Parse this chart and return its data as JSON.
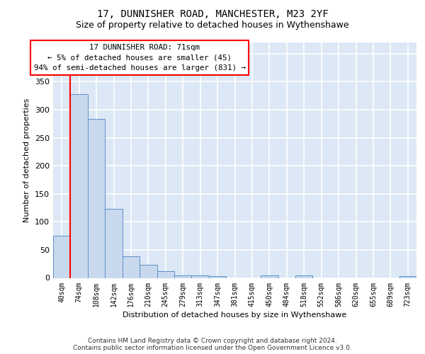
{
  "title": "17, DUNNISHER ROAD, MANCHESTER, M23 2YF",
  "subtitle": "Size of property relative to detached houses in Wythenshawe",
  "xlabel": "Distribution of detached houses by size in Wythenshawe",
  "ylabel": "Number of detached properties",
  "footer": "Contains HM Land Registry data © Crown copyright and database right 2024.\nContains public sector information licensed under the Open Government Licence v3.0.",
  "bin_labels": [
    "40sqm",
    "74sqm",
    "108sqm",
    "142sqm",
    "176sqm",
    "210sqm",
    "245sqm",
    "279sqm",
    "313sqm",
    "347sqm",
    "381sqm",
    "415sqm",
    "450sqm",
    "484sqm",
    "518sqm",
    "552sqm",
    "586sqm",
    "620sqm",
    "655sqm",
    "689sqm",
    "723sqm"
  ],
  "bar_values": [
    75,
    328,
    284,
    123,
    39,
    24,
    12,
    5,
    4,
    3,
    0,
    0,
    5,
    0,
    4,
    0,
    0,
    0,
    0,
    0,
    3
  ],
  "bar_color": "#c9d9ed",
  "bar_edge_color": "#5b8fc9",
  "annotation_text_line1": "17 DUNNISHER ROAD: 71sqm",
  "annotation_text_line2": "← 5% of detached houses are smaller (45)",
  "annotation_text_line3": "94% of semi-detached houses are larger (831) →",
  "annotation_box_color": "white",
  "annotation_box_edge": "red",
  "vline_color": "red",
  "ylim": [
    0,
    420
  ],
  "yticks": [
    0,
    50,
    100,
    150,
    200,
    250,
    300,
    350,
    400
  ],
  "background_color": "#dce8f5",
  "grid_color": "white",
  "title_fontsize": 10,
  "subtitle_fontsize": 9,
  "ylabel_fontsize": 8,
  "xlabel_fontsize": 8,
  "tick_fontsize": 7,
  "footer_fontsize": 6.5
}
